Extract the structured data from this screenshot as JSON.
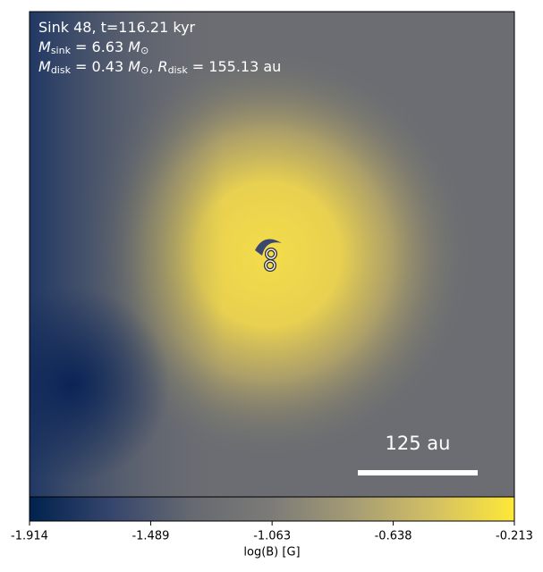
{
  "chart_data": {
    "type": "colormap",
    "annotation_lines": [
      [
        {
          "text": "Sink 48, t=116.21 kyr"
        }
      ],
      [
        {
          "text": "M"
        },
        {
          "text": "sink",
          "sub": true
        },
        {
          "text": " = 6.63 "
        },
        {
          "text": "M"
        },
        {
          "text": "⊙",
          "sub": true
        }
      ],
      [
        {
          "text": "M"
        },
        {
          "text": "disk",
          "sub": true
        },
        {
          "text": " = 0.43 "
        },
        {
          "text": "M"
        },
        {
          "text": "⊙",
          "sub": true
        },
        {
          "text": ", "
        },
        {
          "text": "R"
        },
        {
          "text": "disk",
          "sub": true
        },
        {
          "text": " = 155.13 au"
        }
      ]
    ],
    "scale_bar_label": "125 au",
    "colorbar_label": "log(B) [G]",
    "clim": [
      -1.914,
      -0.213
    ],
    "cticks": [
      -1.914,
      -1.489,
      -1.063,
      -0.638,
      -0.213
    ],
    "colormap": [
      "#00224e",
      "#35456c",
      "#666970",
      "#7c7b78",
      "#a59c74",
      "#d3c064",
      "#fee838"
    ]
  }
}
